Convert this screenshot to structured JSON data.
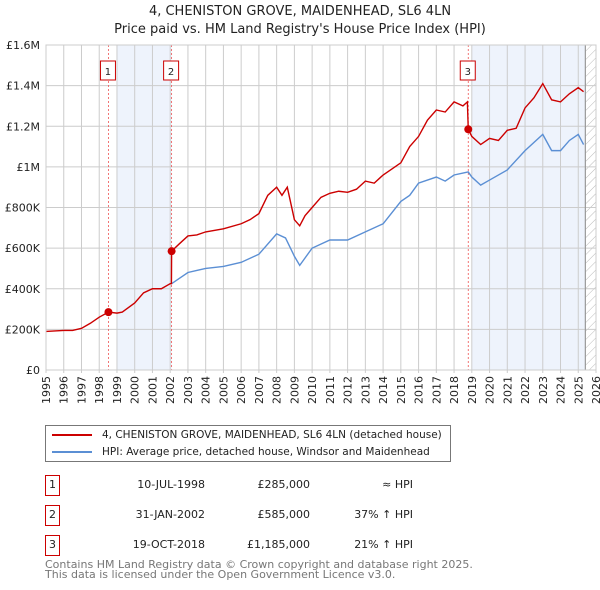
{
  "chart_data": {
    "type": "line",
    "title": "4, CHENISTON GROVE, MAIDENHEAD, SL6 4LN",
    "subtitle": "Price paid vs. HM Land Registry's House Price Index (HPI)",
    "xlim": [
      1995,
      2026
    ],
    "ylim": [
      0,
      1600000
    ],
    "x_ticks": [
      "1995",
      "1996",
      "1997",
      "1998",
      "1999",
      "2000",
      "2001",
      "2002",
      "2003",
      "2004",
      "2005",
      "2006",
      "2007",
      "2008",
      "2009",
      "2010",
      "2011",
      "2012",
      "2013",
      "2014",
      "2015",
      "2016",
      "2017",
      "2018",
      "2019",
      "2020",
      "2021",
      "2022",
      "2023",
      "2024",
      "2025",
      "2026"
    ],
    "y_ticks": [
      {
        "v": 0,
        "label": "£0"
      },
      {
        "v": 200000,
        "label": "£200K"
      },
      {
        "v": 400000,
        "label": "£400K"
      },
      {
        "v": 600000,
        "label": "£600K"
      },
      {
        "v": 800000,
        "label": "£800K"
      },
      {
        "v": 1000000,
        "label": "£1M"
      },
      {
        "v": 1200000,
        "label": "£1.2M"
      },
      {
        "v": 1400000,
        "label": "£1.4M"
      },
      {
        "v": 1600000,
        "label": "£1.6M"
      }
    ],
    "grid": true,
    "shaded_periods": [
      [
        1999.0,
        2002.08
      ],
      [
        2019.0,
        2025.4
      ]
    ],
    "future_hatch_from": 2025.4,
    "series": [
      {
        "name": "4, CHENISTON GROVE, MAIDENHEAD, SL6 4LN (detached house)",
        "color": "#cc0000",
        "x": [
          1995,
          1996,
          1996.5,
          1997,
          1997.5,
          1998,
          1998.52,
          1999,
          1999.3,
          2000,
          2000.5,
          2001,
          2001.5,
          2002,
          2002.07,
          2002.08,
          2002.5,
          2003,
          2003.5,
          2004,
          2005,
          2006,
          2006.5,
          2007,
          2007.5,
          2008,
          2008.3,
          2008.6,
          2009,
          2009.3,
          2009.6,
          2010,
          2010.5,
          2011,
          2011.5,
          2012,
          2012.5,
          2013,
          2013.5,
          2014,
          2014.5,
          2015,
          2015.5,
          2016,
          2016.5,
          2017,
          2017.5,
          2018,
          2018.5,
          2018.75,
          2018.8,
          2019,
          2019.5,
          2020,
          2020.5,
          2021,
          2021.5,
          2022,
          2022.5,
          2023,
          2023.5,
          2024,
          2024.5,
          2025,
          2025.3
        ],
        "y": [
          190000,
          195000,
          195000,
          205000,
          230000,
          260000,
          285000,
          280000,
          285000,
          330000,
          380000,
          400000,
          400000,
          425000,
          425000,
          585000,
          620000,
          660000,
          665000,
          680000,
          695000,
          720000,
          740000,
          770000,
          860000,
          900000,
          860000,
          900000,
          740000,
          710000,
          760000,
          800000,
          850000,
          870000,
          880000,
          875000,
          890000,
          930000,
          920000,
          960000,
          990000,
          1020000,
          1100000,
          1150000,
          1230000,
          1280000,
          1270000,
          1320000,
          1300000,
          1320000,
          1185000,
          1150000,
          1110000,
          1140000,
          1130000,
          1180000,
          1190000,
          1290000,
          1340000,
          1410000,
          1330000,
          1320000,
          1360000,
          1390000,
          1370000
        ]
      },
      {
        "name": "HPI: Average price, detached house, Windsor and Maidenhead",
        "color": "#5b8fd4",
        "x": [
          2002.08,
          2002.5,
          2003,
          2003.5,
          2004,
          2005,
          2006,
          2007,
          2008,
          2008.5,
          2009,
          2009.3,
          2010,
          2011,
          2012,
          2013,
          2014,
          2015,
          2015.5,
          2016,
          2017,
          2017.5,
          2018,
          2018.8,
          2019,
          2019.5,
          2020,
          2021,
          2022,
          2023,
          2023.5,
          2024,
          2024.5,
          2025,
          2025.3
        ],
        "y": [
          425000,
          450000,
          480000,
          490000,
          500000,
          510000,
          530000,
          570000,
          670000,
          650000,
          560000,
          515000,
          600000,
          640000,
          640000,
          680000,
          720000,
          830000,
          860000,
          920000,
          950000,
          930000,
          960000,
          975000,
          950000,
          910000,
          935000,
          985000,
          1080000,
          1160000,
          1080000,
          1080000,
          1130000,
          1160000,
          1110000
        ]
      }
    ],
    "sales": [
      {
        "label": "1",
        "date": "10-JUL-1998",
        "x": 1998.52,
        "price": "£285,000",
        "value": 285000,
        "hpi": "≈ HPI"
      },
      {
        "label": "2",
        "date": "31-JAN-2002",
        "x": 2002.08,
        "price": "£585,000",
        "value": 585000,
        "hpi": "37% ↑ HPI"
      },
      {
        "label": "3",
        "date": "19-OCT-2018",
        "x": 2018.8,
        "price": "£1,185,000",
        "value": 1185000,
        "hpi": "21% ↑ HPI"
      }
    ]
  },
  "footer": {
    "line1": "Contains HM Land Registry data © Crown copyright and database right 2025.",
    "line2": "This data is licensed under the Open Government Licence v3.0."
  }
}
